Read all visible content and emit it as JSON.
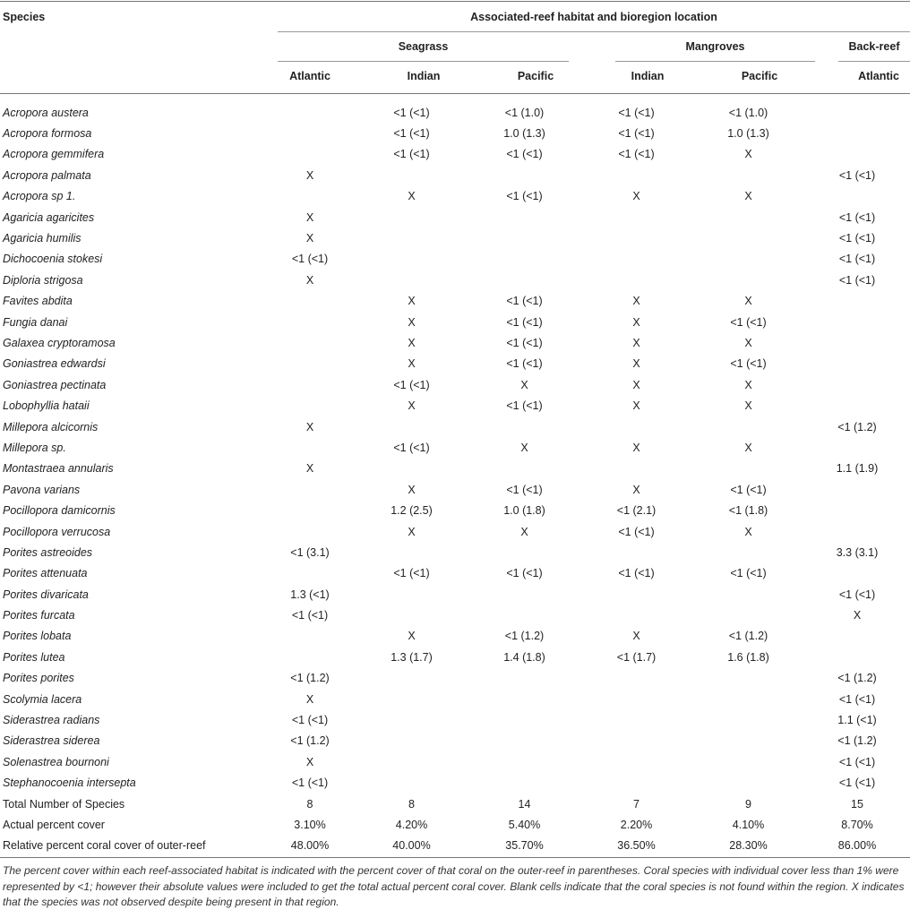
{
  "table": {
    "species_header": "Species",
    "group_header": "Associated-reef habitat and bioregion location",
    "habitats": [
      "Seagrass",
      "Mangroves",
      "Back-reef"
    ],
    "regions": [
      "Atlantic",
      "Indian",
      "Pacific",
      "Indian",
      "Pacific",
      "Atlantic"
    ],
    "rows": [
      [
        "Acropora austera",
        "",
        "<1 (<1)",
        "<1 (1.0)",
        "<1 (<1)",
        "<1 (1.0)",
        ""
      ],
      [
        "Acropora formosa",
        "",
        "<1 (<1)",
        "1.0 (1.3)",
        "<1 (<1)",
        "1.0 (1.3)",
        ""
      ],
      [
        "Acropora gemmifera",
        "",
        "<1 (<1)",
        "<1 (<1)",
        "<1 (<1)",
        "X",
        ""
      ],
      [
        "Acropora palmata",
        "X",
        "",
        "",
        "",
        "",
        "<1 (<1)"
      ],
      [
        "Acropora sp 1.",
        "",
        "X",
        "<1 (<1)",
        "X",
        "X",
        ""
      ],
      [
        "Agaricia agaricites",
        "X",
        "",
        "",
        "",
        "",
        "<1 (<1)"
      ],
      [
        "Agaricia humilis",
        "X",
        "",
        "",
        "",
        "",
        "<1 (<1)"
      ],
      [
        "Dichocoenia stokesi",
        "<1 (<1)",
        "",
        "",
        "",
        "",
        "<1 (<1)"
      ],
      [
        "Diploria strigosa",
        "X",
        "",
        "",
        "",
        "",
        "<1 (<1)"
      ],
      [
        "Favites abdita",
        "",
        "X",
        "<1 (<1)",
        "X",
        "X",
        ""
      ],
      [
        "Fungia danai",
        "",
        "X",
        "<1 (<1)",
        "X",
        "<1 (<1)",
        ""
      ],
      [
        "Galaxea cryptoramosa",
        "",
        "X",
        "<1 (<1)",
        "X",
        "X",
        ""
      ],
      [
        "Goniastrea edwardsi",
        "",
        "X",
        "<1 (<1)",
        "X",
        "<1 (<1)",
        ""
      ],
      [
        "Goniastrea pectinata",
        "",
        "<1 (<1)",
        "X",
        "X",
        "X",
        ""
      ],
      [
        "Lobophyllia hataii",
        "",
        "X",
        "<1 (<1)",
        "X",
        "X",
        ""
      ],
      [
        "Millepora alcicornis",
        "X",
        "",
        "",
        "",
        "",
        "<1 (1.2)"
      ],
      [
        "Millepora sp.",
        "",
        "<1 (<1)",
        "X",
        "X",
        "X",
        ""
      ],
      [
        "Montastraea annularis",
        "X",
        "",
        "",
        "",
        "",
        "1.1 (1.9)"
      ],
      [
        "Pavona varians",
        "",
        "X",
        "<1 (<1)",
        "X",
        "<1 (<1)",
        ""
      ],
      [
        "Pocillopora damicornis",
        "",
        "1.2 (2.5)",
        "1.0 (1.8)",
        "<1 (2.1)",
        "<1 (1.8)",
        ""
      ],
      [
        "Pocillopora verrucosa",
        "",
        "X",
        "X",
        "<1 (<1)",
        "X",
        ""
      ],
      [
        "Porites astreoides",
        "<1 (3.1)",
        "",
        "",
        "",
        "",
        "3.3 (3.1)"
      ],
      [
        "Porites attenuata",
        "",
        "<1 (<1)",
        "<1 (<1)",
        "<1 (<1)",
        "<1 (<1)",
        ""
      ],
      [
        "Porites divaricata",
        "1.3 (<1)",
        "",
        "",
        "",
        "",
        "<1 (<1)"
      ],
      [
        "Porites furcata",
        "<1 (<1)",
        "",
        "",
        "",
        "",
        "X"
      ],
      [
        "Porites lobata",
        "",
        "X",
        "<1 (1.2)",
        "X",
        "<1 (1.2)",
        ""
      ],
      [
        "Porites lutea",
        "",
        "1.3 (1.7)",
        "1.4 (1.8)",
        "<1 (1.7)",
        "1.6 (1.8)",
        ""
      ],
      [
        "Porites porites",
        "<1 (1.2)",
        "",
        "",
        "",
        "",
        "<1 (1.2)"
      ],
      [
        "Scolymia lacera",
        "X",
        "",
        "",
        "",
        "",
        "<1 (<1)"
      ],
      [
        "Siderastrea radians",
        "<1 (<1)",
        "",
        "",
        "",
        "",
        "1.1 (<1)"
      ],
      [
        "Siderastrea siderea",
        "<1 (1.2)",
        "",
        "",
        "",
        "",
        "<1 (1.2)"
      ],
      [
        "Solenastrea bournoni",
        "X",
        "",
        "",
        "",
        "",
        "<1 (<1)"
      ],
      [
        "Stephanocoenia intersepta",
        "<1 (<1)",
        "",
        "",
        "",
        "",
        "<1 (<1)"
      ]
    ],
    "summary_rows": [
      [
        "Total Number of Species",
        "8",
        "8",
        "14",
        "7",
        "9",
        "15"
      ],
      [
        "Actual percent cover",
        "3.10%",
        "4.20%",
        "5.40%",
        "2.20%",
        "4.10%",
        "8.70%"
      ],
      [
        "Relative percent coral cover of outer-reef",
        "48.00%",
        "40.00%",
        "35.70%",
        "36.50%",
        "28.30%",
        "86.00%"
      ]
    ],
    "footnote": "The percent cover within each reef-associated habitat is indicated with the percent cover of that coral on the outer-reef in parentheses. Coral species with individual cover less than 1% were represented by <1; however their absolute values were included to get the total actual percent coral cover. Blank cells indicate that the coral species is not found within the region. X indicates that the species was not observed despite being present in that region."
  }
}
